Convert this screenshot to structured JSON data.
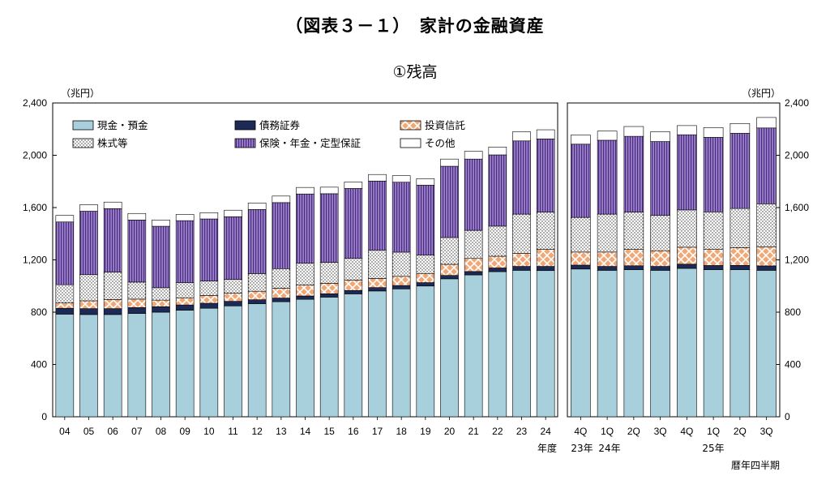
{
  "page": {
    "title": "（図表３－１）　家計の金融資産",
    "subtitle": "①残高"
  },
  "chart_data": {
    "type": "bar",
    "stacked": true,
    "title": "（図表３－１）　家計の金融資産",
    "subtitle": "①残高",
    "ylabel_left": "（兆円）",
    "ylabel_right": "（兆円）",
    "ylim": [
      0,
      2400
    ],
    "yticks": [
      0,
      400,
      800,
      1200,
      1600,
      2000,
      2400
    ],
    "ytick_labels": [
      "0",
      "400",
      "800",
      "1,200",
      "1,600",
      "2,000",
      "2,400"
    ],
    "legend": [
      {
        "name": "現金・預金",
        "color": "#a8d0dc"
      },
      {
        "name": "債務証券",
        "color": "#1c2a55"
      },
      {
        "name": "投資信託",
        "color": "#f0a878"
      },
      {
        "name": "株式等",
        "color": "#ffffff"
      },
      {
        "name": "保険・年金・定型保証",
        "color": "#9a80c8"
      },
      {
        "name": "その他",
        "color": "#ffffff"
      }
    ],
    "panels": [
      {
        "name": "annual",
        "xlabel": "年度",
        "categories": [
          "04",
          "05",
          "06",
          "07",
          "08",
          "09",
          "10",
          "11",
          "12",
          "13",
          "14",
          "15",
          "16",
          "17",
          "18",
          "19",
          "20",
          "21",
          "22",
          "23",
          "24"
        ],
        "series": [
          {
            "name": "現金・預金",
            "values": [
              785,
              782,
              782,
              790,
              800,
              815,
              830,
              848,
              865,
              880,
              898,
              915,
              940,
              962,
              978,
              1000,
              1055,
              1085,
              1110,
              1120,
              1118
            ]
          },
          {
            "name": "債務証券",
            "values": [
              45,
              45,
              45,
              45,
              42,
              40,
              38,
              35,
              30,
              28,
              26,
              26,
              26,
              26,
              26,
              26,
              26,
              26,
              28,
              30,
              32
            ]
          },
          {
            "name": "投資信託",
            "values": [
              40,
              60,
              70,
              65,
              50,
              55,
              60,
              62,
              65,
              75,
              85,
              80,
              80,
              70,
              70,
              70,
              85,
              100,
              90,
              100,
              130
            ]
          },
          {
            "name": "株式等",
            "values": [
              140,
              200,
              210,
              130,
              95,
              115,
              110,
              105,
              135,
              150,
              165,
              160,
              165,
              215,
              185,
              140,
              205,
              215,
              230,
              300,
              285
            ]
          },
          {
            "name": "保険・年金・定型保証",
            "values": [
              480,
              485,
              485,
              475,
              470,
              475,
              475,
              480,
              490,
              505,
              530,
              525,
              535,
              530,
              535,
              535,
              545,
              545,
              545,
              560,
              560
            ]
          },
          {
            "name": "その他",
            "values": [
              50,
              50,
              50,
              50,
              48,
              48,
              48,
              50,
              50,
              50,
              50,
              50,
              50,
              50,
              50,
              50,
              55,
              60,
              60,
              70,
              70
            ]
          }
        ]
      },
      {
        "name": "quarterly",
        "xlabel": "暦年四半期",
        "categories": [
          "4Q",
          "1Q",
          "2Q",
          "3Q",
          "4Q",
          "1Q",
          "2Q",
          "3Q"
        ],
        "year_labels": [
          "23年",
          "24年",
          "25年"
        ],
        "series": [
          {
            "name": "現金・預金",
            "values": [
              1130,
              1120,
              1125,
              1120,
              1135,
              1125,
              1125,
              1120
            ]
          },
          {
            "name": "債務証券",
            "values": [
              30,
              30,
              30,
              30,
              32,
              32,
              33,
              34
            ]
          },
          {
            "name": "投資信託",
            "values": [
              100,
              110,
              125,
              120,
              130,
              125,
              135,
              145
            ]
          },
          {
            "name": "株式等",
            "values": [
              265,
              290,
              285,
              270,
              285,
              285,
              300,
              330
            ]
          },
          {
            "name": "保険・年金・定型保証",
            "values": [
              560,
              565,
              580,
              565,
              575,
              570,
              575,
              580
            ]
          },
          {
            "name": "その他",
            "values": [
              70,
              70,
              75,
              75,
              70,
              75,
              75,
              80
            ]
          }
        ]
      }
    ]
  }
}
